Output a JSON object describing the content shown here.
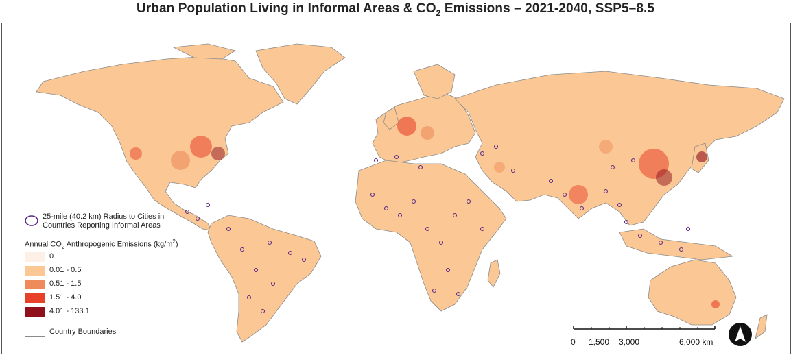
{
  "title": {
    "main": "Urban Population Living in Informal Areas & CO",
    "sub": "2",
    "rest": " Emissions – 2021-2040, SSP5–8.5"
  },
  "legend": {
    "radius_label_1": "25-mile (40.2 km) Radius to Cities in",
    "radius_label_2": "Countries Reporting Informal Areas",
    "emissions_title_a": "Annual CO",
    "emissions_title_sub": "2",
    "emissions_title_b": " Anthropogenic Emissions (kg/m",
    "emissions_title_sup": "2",
    "emissions_title_c": ")",
    "classes": [
      {
        "label": "0",
        "color": "#fdf0e6"
      },
      {
        "label": "0.01 - 0.5",
        "color": "#fbc895"
      },
      {
        "label": "0.51 - 1.5",
        "color": "#ef8b5a"
      },
      {
        "label": "1.51 - 4.0",
        "color": "#e8412a"
      },
      {
        "label": "4.01 - 133.1",
        "color": "#8f0f1c"
      }
    ],
    "boundaries_label": "Country Boundaries"
  },
  "scale_bar": {
    "labels": [
      "0",
      "1,500",
      "3,000",
      "6,000 km"
    ]
  },
  "north_arrow": {
    "icon": "north-arrow-icon"
  },
  "colors": {
    "land": "#fbc895",
    "boundary": "#8a8a8a",
    "city_circle": "#5b2a86",
    "ocean": "#ffffff"
  }
}
